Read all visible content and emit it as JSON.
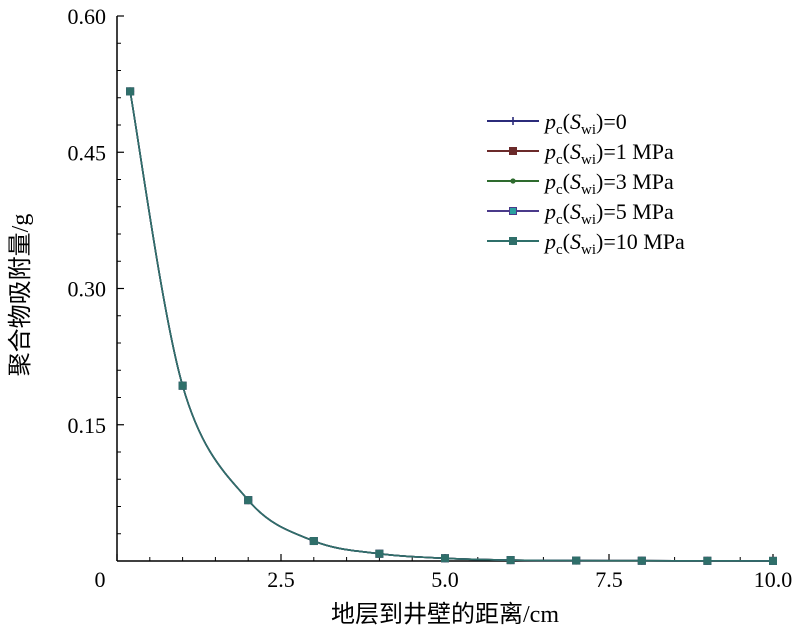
{
  "chart_data": {
    "type": "line",
    "title": "",
    "xlabel": "地层到井壁的距离/cm",
    "ylabel": "聚合物吸附量/g",
    "xlim": [
      0,
      10
    ],
    "ylim": [
      0,
      0.6
    ],
    "x_ticks": [
      "0",
      "2.5",
      "5.0",
      "7.5",
      "10.0"
    ],
    "y_ticks": [
      "0.15",
      "0.30",
      "0.45",
      "0.60"
    ],
    "grid": false,
    "legend_position": "top-right",
    "x": [
      0.2,
      1.0,
      2.0,
      3.0,
      4.0,
      5.0,
      6.0,
      7.0,
      8.0,
      9.0,
      10.0
    ],
    "series": [
      {
        "name": "pc(Swi)=0",
        "label_parts": [
          "p",
          "c",
          "(",
          "S",
          "wi",
          ")=0"
        ],
        "color": "#2b2b7a",
        "marker": "plus",
        "values": [
          0.517,
          0.193,
          0.067,
          0.022,
          0.008,
          0.003,
          0.001,
          0.0005,
          0.0003,
          0.0002,
          0.0001
        ]
      },
      {
        "name": "pc(Swi)=1 MPa",
        "label_parts": [
          "p",
          "c",
          "(",
          "S",
          "wi",
          ")=1 MPa"
        ],
        "color": "#6b2a2a",
        "marker": "square",
        "values": [
          0.517,
          0.193,
          0.067,
          0.022,
          0.008,
          0.003,
          0.001,
          0.0005,
          0.0003,
          0.0002,
          0.0001
        ]
      },
      {
        "name": "pc(Swi)=3 MPa",
        "label_parts": [
          "p",
          "c",
          "(",
          "S",
          "wi",
          ")=3 MPa"
        ],
        "color": "#2e6b2e",
        "marker": "star",
        "values": [
          0.517,
          0.193,
          0.067,
          0.022,
          0.008,
          0.003,
          0.001,
          0.0005,
          0.0003,
          0.0002,
          0.0001
        ]
      },
      {
        "name": "pc(Swi)=5 MPa",
        "label_parts": [
          "p",
          "c",
          "(",
          "S",
          "wi",
          ")=5 MPa"
        ],
        "color": "#4a3a8a",
        "marker": "square-teal",
        "values": [
          0.517,
          0.193,
          0.067,
          0.022,
          0.008,
          0.003,
          0.001,
          0.0005,
          0.0003,
          0.0002,
          0.0001
        ]
      },
      {
        "name": "pc(Swi)=10 MPa",
        "label_parts": [
          "p",
          "c",
          "(",
          "S",
          "wi",
          ")=10 MPa"
        ],
        "color": "#2f6f6a",
        "marker": "square",
        "values": [
          0.517,
          0.193,
          0.067,
          0.022,
          0.008,
          0.003,
          0.001,
          0.0005,
          0.0003,
          0.0002,
          0.0001
        ]
      }
    ]
  }
}
